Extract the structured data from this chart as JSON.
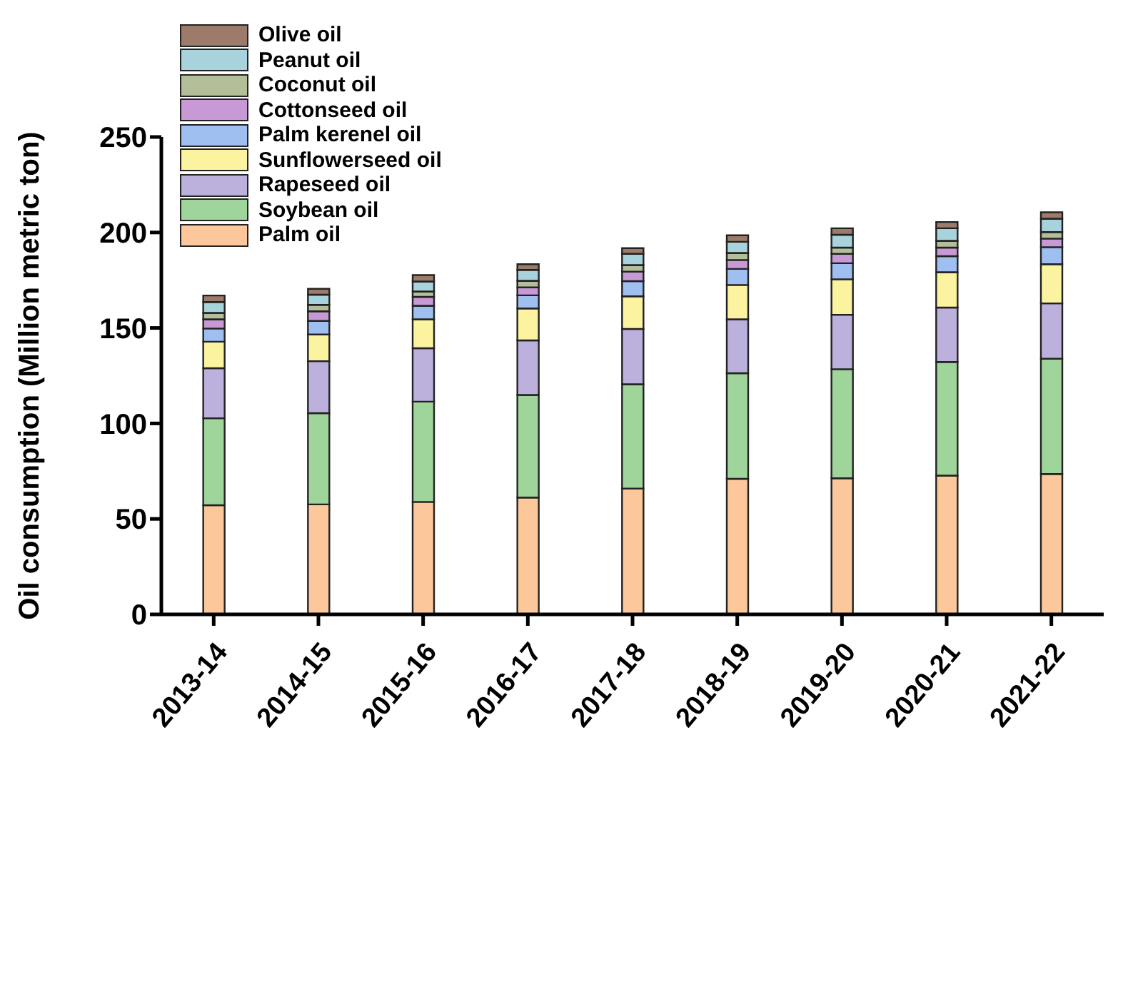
{
  "chart_data": {
    "type": "bar",
    "stacked": true,
    "ylabel": "Oil consumption (Million metric ton)",
    "categories": [
      "2013-14",
      "2014-15",
      "2015-16",
      "2016-17",
      "2017-18",
      "2018-19",
      "2019-20",
      "2020-21",
      "2021-22"
    ],
    "series": [
      {
        "name": "Palm oil",
        "color": "#fcc89b",
        "values": [
          57.2,
          57.6,
          58.9,
          61.2,
          65.9,
          71.0,
          71.3,
          72.7,
          73.5
        ]
      },
      {
        "name": "Soybean oil",
        "color": "#9fd59a",
        "values": [
          45.5,
          47.8,
          52.5,
          53.7,
          54.6,
          55.3,
          57.1,
          59.5,
          60.4
        ]
      },
      {
        "name": "Rapeseed oil",
        "color": "#bcb0dc",
        "values": [
          26.2,
          27.2,
          28.0,
          28.6,
          29.0,
          28.2,
          28.5,
          28.5,
          29.0
        ]
      },
      {
        "name": "Sunflowerseed oil",
        "color": "#fbf3a0",
        "values": [
          13.9,
          14.0,
          15.1,
          16.7,
          17.1,
          18.0,
          18.6,
          18.5,
          20.5
        ]
      },
      {
        "name": "Palm kerenel oil",
        "color": "#9ebff0",
        "values": [
          6.9,
          7.1,
          7.1,
          6.9,
          7.9,
          8.4,
          8.4,
          8.4,
          8.9
        ]
      },
      {
        "name": "Cottonseed oil",
        "color": "#c79ad6",
        "values": [
          4.8,
          5.0,
          4.7,
          4.2,
          5.0,
          4.7,
          4.9,
          4.5,
          4.5
        ]
      },
      {
        "name": "Coconut oil",
        "color": "#b4bf9a",
        "values": [
          3.4,
          3.4,
          2.8,
          3.4,
          3.4,
          3.7,
          3.3,
          3.5,
          3.4
        ]
      },
      {
        "name": "Peanut oil",
        "color": "#a8d3dc",
        "values": [
          5.7,
          5.3,
          5.2,
          5.7,
          5.9,
          5.8,
          6.7,
          6.6,
          7.0
        ]
      },
      {
        "name": "Olive oil",
        "color": "#9c7b6a",
        "values": [
          3.4,
          3.1,
          3.4,
          3.0,
          3.0,
          3.4,
          3.4,
          3.3,
          3.4
        ]
      }
    ],
    "ylim": [
      0,
      250
    ],
    "yticks": [
      0,
      50,
      100,
      150,
      200,
      250
    ],
    "grid": false,
    "legend": "top left"
  }
}
